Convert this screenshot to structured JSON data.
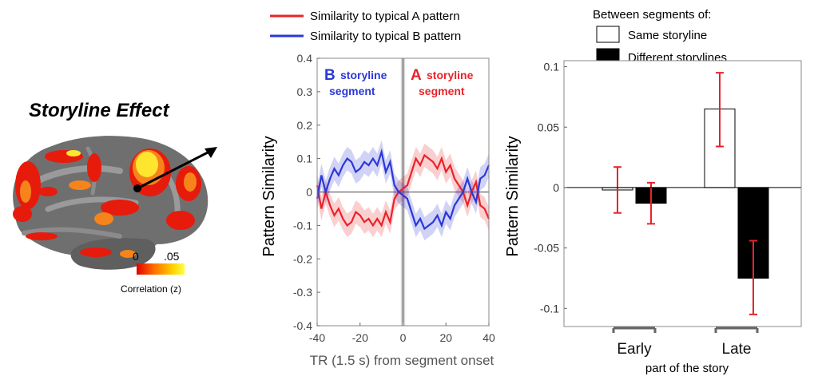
{
  "brain_panel": {
    "title": "Storyline Effect",
    "colorbar": {
      "min_label": "0",
      "max_label": ".05",
      "label": "Correlation (z)",
      "colors": [
        "#e00000",
        "#ff6a00",
        "#ffd000",
        "#ffff40"
      ]
    },
    "brain_colors": {
      "cortex": "#6f6f6f",
      "sulci": "#9a9a9a",
      "hot_red": "#e61b0c",
      "hot_orange": "#f7841a",
      "hot_yellow": "#ffe62e"
    }
  },
  "chart_data": [
    {
      "type": "line",
      "xlabel": "TR (1.5 s) from segment onset",
      "ylabel": "Pattern Similarity",
      "xlim": [
        -40,
        40
      ],
      "ylim": [
        -0.4,
        0.4
      ],
      "xticks": [
        "-40",
        "-20",
        "0",
        "20",
        "40"
      ],
      "yticks": [
        "0.4",
        "0.3",
        "0.2",
        "0.1",
        "0",
        "-0.1",
        "-0.2",
        "-0.3",
        "-0.4"
      ],
      "x": [
        -40,
        -38,
        -36,
        -34,
        -32,
        -30,
        -28,
        -26,
        -24,
        -22,
        -20,
        -18,
        -16,
        -14,
        -12,
        -10,
        -8,
        -6,
        -4,
        -2,
        0,
        2,
        4,
        6,
        8,
        10,
        12,
        14,
        16,
        18,
        20,
        22,
        24,
        26,
        28,
        30,
        32,
        34,
        36,
        38,
        40
      ],
      "series": [
        {
          "name": "Similarity to typical A pattern",
          "color": "#e8232a",
          "values": [
            0.02,
            -0.05,
            0.0,
            -0.04,
            -0.07,
            -0.05,
            -0.08,
            -0.1,
            -0.09,
            -0.06,
            -0.07,
            -0.09,
            -0.08,
            -0.1,
            -0.08,
            -0.1,
            -0.06,
            -0.09,
            -0.02,
            0.0,
            0.01,
            0.02,
            0.06,
            0.1,
            0.08,
            0.11,
            0.1,
            0.09,
            0.07,
            0.1,
            0.06,
            0.08,
            0.04,
            0.02,
            0.0,
            -0.04,
            0.0,
            0.03,
            -0.04,
            -0.05,
            -0.08
          ],
          "error": 0.035
        },
        {
          "name": "Similarity to typical B pattern",
          "color": "#2b37d8",
          "values": [
            -0.02,
            0.05,
            0.0,
            0.04,
            0.07,
            0.05,
            0.08,
            0.1,
            0.09,
            0.06,
            0.07,
            0.09,
            0.08,
            0.1,
            0.08,
            0.12,
            0.06,
            0.09,
            0.02,
            0.0,
            -0.01,
            -0.02,
            -0.06,
            -0.1,
            -0.08,
            -0.11,
            -0.1,
            -0.09,
            -0.07,
            -0.1,
            -0.06,
            -0.08,
            -0.04,
            -0.02,
            0.0,
            0.04,
            0.0,
            -0.03,
            0.04,
            0.05,
            0.08
          ],
          "error": 0.035
        }
      ],
      "annotations": [
        {
          "letter": "B",
          "text_line1": "storyline",
          "text_line2": "segment",
          "color": "#2b37d8"
        },
        {
          "letter": "A",
          "text_line1": "storyline",
          "text_line2": "segment",
          "color": "#e8232a"
        }
      ],
      "legend": "top",
      "grid": false
    },
    {
      "type": "bar",
      "ylabel": "Pattern Similarity",
      "xlabel": "part of the story",
      "categories": [
        "Early",
        "Late"
      ],
      "ylim": [
        -0.115,
        0.105
      ],
      "yticks": [
        "0.1",
        "0.05",
        "0",
        "-0.05",
        "-0.1"
      ],
      "legend_title": "Between segments of:",
      "series": [
        {
          "name": "Same storyline",
          "fill": "#ffffff",
          "values": [
            -0.002,
            0.065
          ],
          "err_low": [
            -0.021,
            0.034
          ],
          "err_high": [
            0.017,
            0.095
          ]
        },
        {
          "name": "Different storylines",
          "fill": "#000000",
          "values": [
            -0.013,
            -0.075
          ],
          "err_low": [
            -0.03,
            -0.105
          ],
          "err_high": [
            0.004,
            -0.044
          ]
        }
      ],
      "error_color": "#e8232a",
      "legend": "top-right",
      "grid": false
    }
  ]
}
